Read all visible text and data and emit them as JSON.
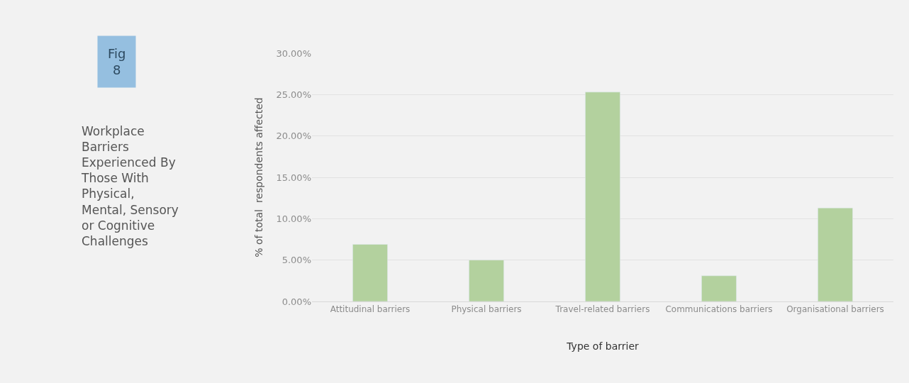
{
  "chart_data": {
    "type": "bar",
    "title": "Workplace Barriers Experienced By Those With Physical, Mental, Sensory or Cognitive Challenges",
    "annotations": [
      "Fig 8"
    ],
    "xlabel": "Type of barrier",
    "ylabel": "% of total  respondents affected",
    "categories": [
      "Attitudinal barriers",
      "Physical barriers",
      "Travel-related barriers",
      "Communications barriers",
      "Organisational barriers"
    ],
    "values": [
      6.9,
      5.0,
      25.3,
      3.1,
      11.3
    ],
    "color": "#b3d19e",
    "ylim": [
      0,
      30
    ],
    "yticks": [
      {
        "value": 0,
        "label": "0.00%"
      },
      {
        "value": 5,
        "label": "5.00%"
      },
      {
        "value": 10,
        "label": "10.00%"
      },
      {
        "value": 15,
        "label": "15.00%"
      },
      {
        "value": 20,
        "label": "20.00%"
      },
      {
        "value": 25,
        "label": "25.00%"
      },
      {
        "value": 30,
        "label": "30.00%"
      }
    ],
    "grid": "y",
    "legend": false
  }
}
